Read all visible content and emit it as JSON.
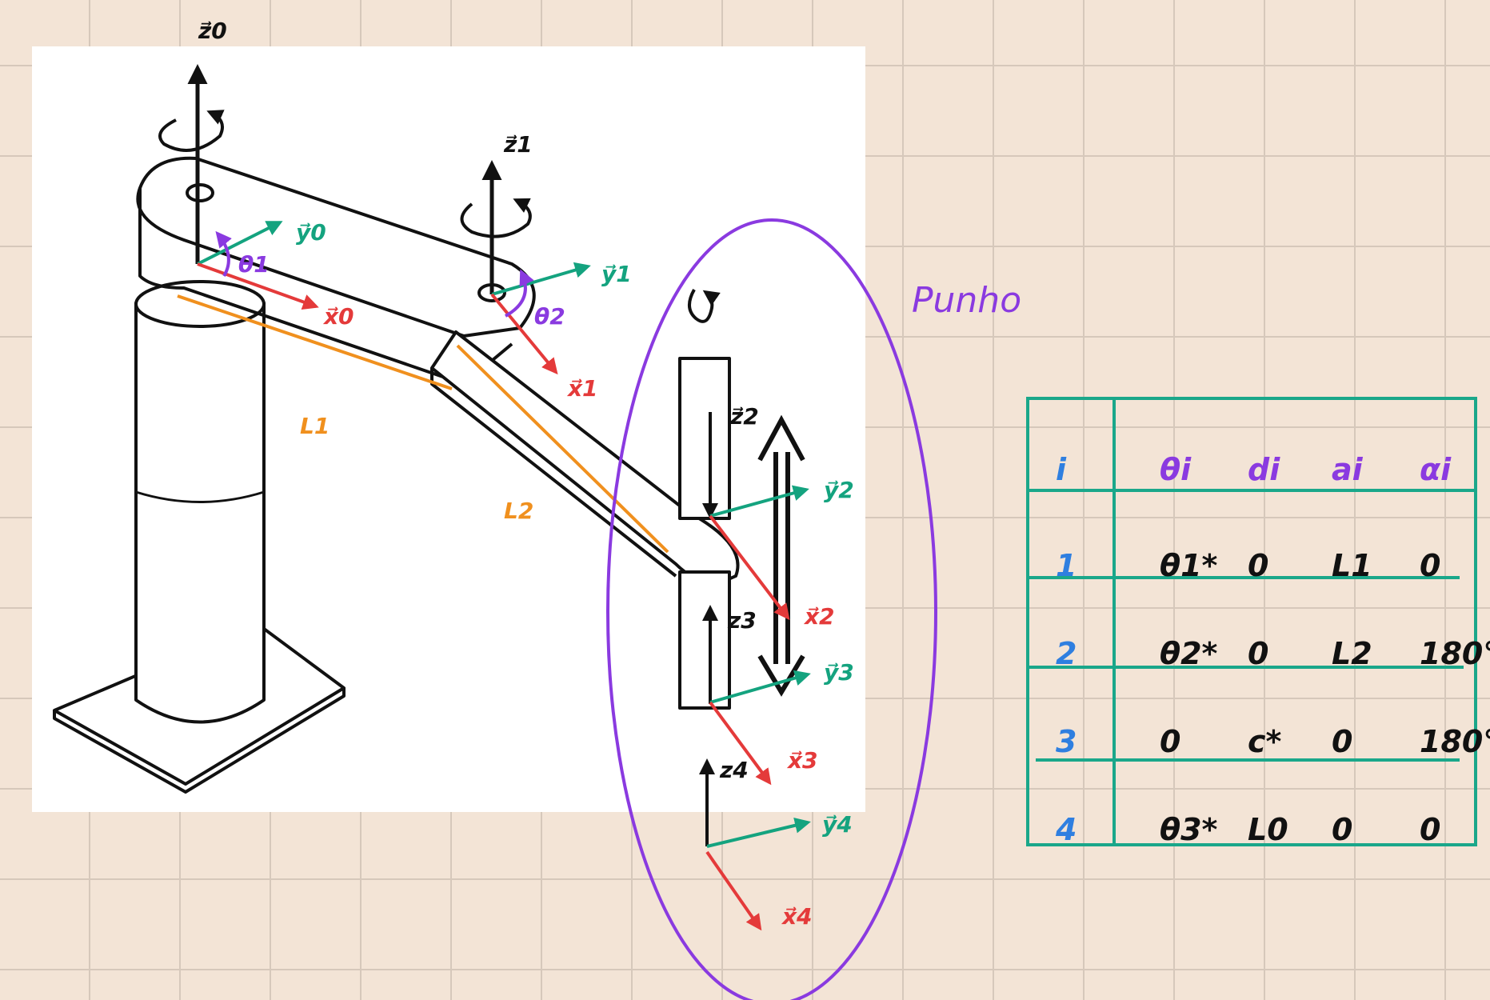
{
  "frames": {
    "z0": "z⃗0",
    "y0": "y⃗0",
    "x0": "x⃗0",
    "z1": "z⃗1",
    "y1": "y⃗1",
    "x1": "x⃗1",
    "z2": "z⃗2",
    "y2": "y⃗2",
    "x2": "x⃗2",
    "z3": "z3",
    "y3": "y⃗3",
    "x3": "x⃗3",
    "z4": "z4",
    "y4": "y⃗4",
    "x4": "x⃗4"
  },
  "angles": {
    "theta1": "θ1",
    "theta2": "θ2"
  },
  "links": {
    "l1": "L1",
    "l2": "L2"
  },
  "wrist_label": "Punho",
  "colors": {
    "z_axis": "#111111",
    "y_axis": "#14a37f",
    "x_axis": "#e43a3a",
    "link_length": "#f0901e",
    "wrist": "#8a3ae0",
    "table": "#1aa78a",
    "row_index": "#2f7fe0",
    "header": "#8a3ae0"
  },
  "dh_table": {
    "headers": [
      "i",
      "θi",
      "di",
      "ai",
      "αi"
    ],
    "rows": [
      [
        "1",
        "θ1*",
        "0",
        "L1",
        "0"
      ],
      [
        "2",
        "θ2*",
        "0",
        "L2",
        "180°"
      ],
      [
        "3",
        "0",
        "c*",
        "0",
        "180°"
      ],
      [
        "4",
        "θ3*",
        "L0",
        "0",
        "0"
      ]
    ]
  }
}
